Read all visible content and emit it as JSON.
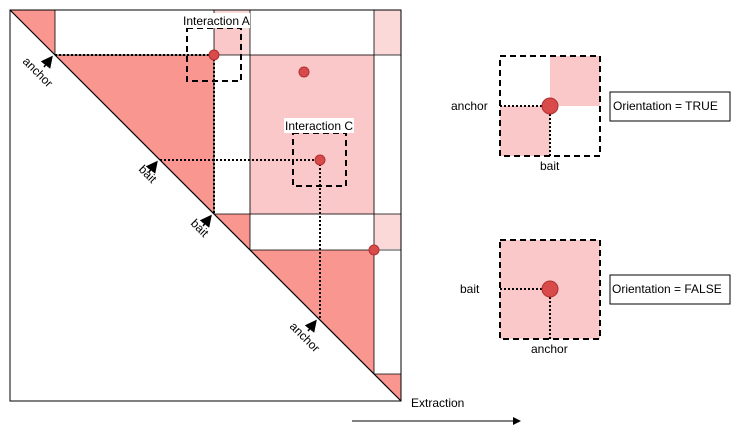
{
  "colors": {
    "triangle_fill": "#f8968f",
    "triangle_stroke": "#c85050",
    "light_fill": "#fac8c8",
    "lighter_fill": "#fbd9d9",
    "dot_fill": "#d94a4a",
    "dot_stroke": "#b03030",
    "line": "#000000"
  },
  "matrix": {
    "interaction_a_label": "Interaction A",
    "interaction_c_label": "Interaction C",
    "anchor_label_top": "anchor",
    "bait_label_mid": "bait",
    "bait_label_low": "bait",
    "anchor_label_bottom": "anchor"
  },
  "extraction": {
    "label": "Extraction"
  },
  "orientation_true": {
    "row_label": "anchor",
    "col_label": "bait",
    "box_label": "Orientation = TRUE"
  },
  "orientation_false": {
    "row_label": "bait",
    "col_label": "anchor",
    "box_label": "Orientation = FALSE"
  }
}
